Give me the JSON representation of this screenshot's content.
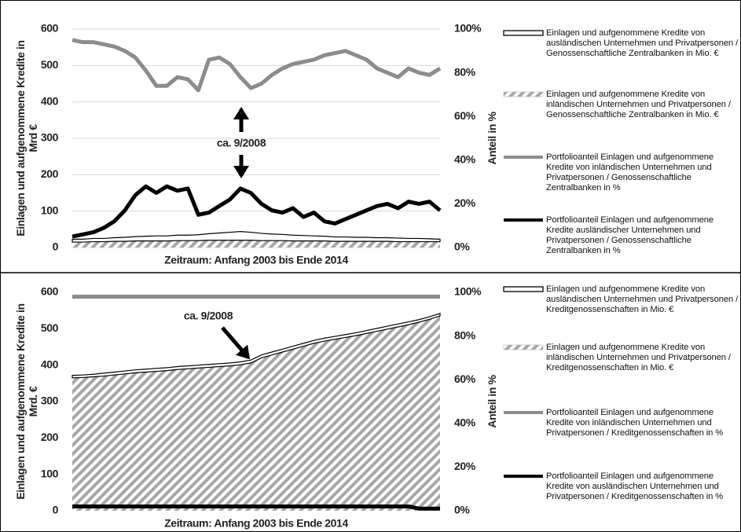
{
  "chart_data": [
    {
      "type": "combo",
      "stacked": true,
      "grid": true,
      "ylabel": "Einlagen und aufgenommene Kredite in Mrd €",
      "y2label": "Anteil in %",
      "xlabel": "Zeitraum: Anfang 2003 bis Ende 2014",
      "annotation": "ca. 9/2008",
      "categories": [
        null,
        null,
        null,
        null,
        null,
        null,
        null,
        null,
        null,
        null,
        null,
        null,
        null,
        null,
        null,
        null,
        null,
        null,
        null,
        null,
        null,
        null,
        null,
        null,
        null,
        null,
        null,
        null,
        null,
        null,
        null,
        null,
        null,
        null,
        null,
        null
      ],
      "ylim": [
        0,
        600
      ],
      "yticks": [
        0,
        100,
        200,
        300,
        400,
        500,
        600
      ],
      "y2lim": [
        0,
        100
      ],
      "y2ticks": [
        {
          "value": 0,
          "label": "0%"
        },
        {
          "value": 20,
          "label": "20%"
        },
        {
          "value": 40,
          "label": "40%"
        },
        {
          "value": 60,
          "label": "60%"
        },
        {
          "value": 80,
          "label": "80%"
        },
        {
          "value": 100,
          "label": "100%"
        }
      ],
      "series": [
        {
          "name": "Einlagen und aufgenommene Kredite von ausländischen Unternehmen und Privatpersonen / Genossenschaftliche Zentralbanken in Mio. €",
          "style": "outline",
          "color": "#000000",
          "values": [
            8,
            8,
            9,
            9,
            10,
            11,
            12,
            13,
            14,
            14,
            15,
            15,
            16,
            18,
            20,
            22,
            24,
            22,
            20,
            18,
            17,
            16,
            15,
            14,
            13,
            12,
            12,
            11,
            11,
            10,
            10,
            10,
            9,
            9,
            8,
            7
          ]
        },
        {
          "name": "Einlagen und aufgenommene Kredite von inländischen Unternehmen und Privatpersonen / Genossenschaftliche Zentralbanken in Mio. €",
          "style": "hatch",
          "color": "#a6a6a6",
          "values": [
            15,
            15,
            16,
            16,
            17,
            17,
            18,
            18,
            18,
            18,
            19,
            19,
            19,
            20,
            20,
            20,
            20,
            20,
            19,
            19,
            19,
            18,
            18,
            18,
            18,
            17,
            17,
            17,
            17,
            17,
            17,
            16,
            16,
            16,
            16,
            16
          ]
        },
        {
          "name": "Portfolioanteil Einlagen und aufgenommene Kredite von inländischen Unternehmen und Privatpersonen / Genossenschaftliche Zentralbanken in %",
          "style": "line",
          "color": "#8c8c8c",
          "axis": "y2",
          "values": [
            95,
            94,
            94,
            93,
            92,
            90,
            87,
            81,
            74,
            74,
            78,
            77,
            72,
            86,
            87,
            84,
            78,
            73,
            75,
            79,
            82,
            84,
            85,
            86,
            88,
            89,
            90,
            88,
            86,
            82,
            80,
            78,
            82,
            80,
            79,
            82
          ]
        },
        {
          "name": "Portfolioanteil Einlagen und aufgenommene Kredite ausländischer Unternehmen und Privatpersonen / Genossenschaftliche Zentralbanken in %",
          "style": "line",
          "color": "#000000",
          "axis": "y2",
          "values": [
            5,
            6,
            7,
            9,
            12,
            17,
            24,
            28,
            25,
            28,
            26,
            27,
            15,
            16,
            19,
            22,
            27,
            25,
            20,
            17,
            16,
            18,
            14,
            16,
            12,
            11,
            13,
            15,
            17,
            19,
            20,
            18,
            21,
            20,
            21,
            17
          ]
        }
      ]
    },
    {
      "type": "combo",
      "stacked": true,
      "grid": false,
      "ylabel": "Einlagen und aufgenommene Kredite in Mrd. €",
      "y2label": "Anteil in %",
      "xlabel": "Zeitraum: Anfang 2003 bis Ende 2014",
      "annotation": "ca. 9/2008",
      "categories": [
        null,
        null,
        null,
        null,
        null,
        null,
        null,
        null,
        null,
        null,
        null,
        null,
        null,
        null,
        null,
        null,
        null,
        null,
        null,
        null,
        null,
        null,
        null,
        null,
        null,
        null,
        null,
        null,
        null,
        null,
        null,
        null,
        null,
        null,
        null,
        null
      ],
      "ylim": [
        0,
        600
      ],
      "yticks": [
        0,
        100,
        200,
        300,
        400,
        500,
        600
      ],
      "y2lim": [
        0,
        100
      ],
      "y2ticks": [
        {
          "value": 0,
          "label": "0%"
        },
        {
          "value": 20,
          "label": "20%"
        },
        {
          "value": 40,
          "label": "40%"
        },
        {
          "value": 60,
          "label": "60%"
        },
        {
          "value": 80,
          "label": "80%"
        },
        {
          "value": 100,
          "label": "100%"
        }
      ],
      "series": [
        {
          "name": "Einlagen und aufgenommene Kredite von ausländischen Unternehmen und Privatpersonen / Kreditgenossenschaften in Mio. €",
          "style": "outline",
          "color": "#000000",
          "values": [
            7,
            7,
            7,
            8,
            8,
            8,
            8,
            8,
            8,
            8,
            8,
            8,
            8,
            8,
            8,
            8,
            8,
            8,
            8,
            8,
            8,
            8,
            8,
            8,
            8,
            8,
            8,
            8,
            8,
            8,
            8,
            8,
            8,
            7,
            7,
            7
          ]
        },
        {
          "name": "Einlagen und aufgenommene Kredite von inländischen Unternehmen und Privatpersonen / Kreditgenossenschaften in Mio. €",
          "style": "hatch",
          "color": "#a6a6a6",
          "values": [
            365,
            366,
            368,
            370,
            373,
            376,
            379,
            381,
            383,
            385,
            388,
            390,
            392,
            394,
            396,
            398,
            401,
            406,
            420,
            428,
            436,
            444,
            452,
            460,
            466,
            471,
            476,
            481,
            487,
            493,
            499,
            505,
            511,
            518,
            526,
            535
          ]
        },
        {
          "name": "Portfolioanteil Einlagen und aufgenommene Kredite von inländischen Unternehmen und Privatpersonen / Kreditgenossenschaften in %",
          "style": "line",
          "color": "#8c8c8c",
          "axis": "y2",
          "values": [
            98,
            98,
            98,
            98,
            98,
            98,
            98,
            98,
            98,
            98,
            98,
            98,
            98,
            98,
            98,
            98,
            98,
            98,
            98,
            98,
            98,
            98,
            98,
            98,
            98,
            98,
            98,
            98,
            98,
            98,
            98,
            98,
            98,
            98,
            98,
            98
          ]
        },
        {
          "name": "Portfolioanteil Einlagen und aufgenommene Kredite von ausländischen Unternehmen und Privatpersonen / Kreditgenossenschaften in %",
          "style": "line",
          "color": "#000000",
          "axis": "y2",
          "values": [
            2,
            2,
            2,
            2,
            2,
            2,
            2,
            2,
            2,
            2,
            2,
            2,
            2,
            2,
            2,
            2,
            2,
            2,
            2,
            2,
            2,
            2,
            2,
            2,
            2,
            2,
            2,
            2,
            2,
            2,
            2,
            2,
            2,
            1,
            1,
            1
          ]
        }
      ]
    }
  ]
}
